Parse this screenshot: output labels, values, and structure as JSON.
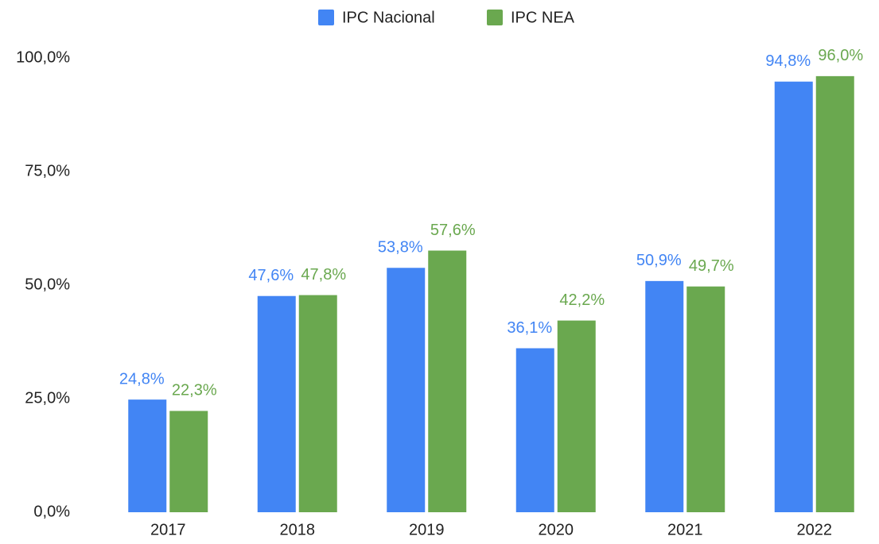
{
  "chart_data": {
    "type": "bar",
    "categories": [
      "2017",
      "2018",
      "2019",
      "2020",
      "2021",
      "2022"
    ],
    "series": [
      {
        "name": "IPC Nacional",
        "color": "#4285f4",
        "values": [
          24.8,
          47.6,
          53.8,
          36.1,
          50.9,
          94.8
        ],
        "value_labels": [
          "24,8%",
          "47,6%",
          "53,8%",
          "36,1%",
          "50,9%",
          "94,8%"
        ]
      },
      {
        "name": "IPC NEA",
        "color": "#6aa84f",
        "values": [
          22.3,
          47.8,
          57.6,
          42.2,
          49.7,
          96.0
        ],
        "value_labels": [
          "22,3%",
          "47,8%",
          "57,6%",
          "42,2%",
          "49,7%",
          "96,0%"
        ]
      }
    ],
    "ylim": [
      0,
      100
    ],
    "yticks": [
      {
        "value": 0,
        "label": "0,0%"
      },
      {
        "value": 25,
        "label": "25,0%"
      },
      {
        "value": 50,
        "label": "50,0%"
      },
      {
        "value": 75,
        "label": "75,0%"
      },
      {
        "value": 100,
        "label": "100,0%"
      }
    ],
    "legend": "top",
    "grid": false
  }
}
